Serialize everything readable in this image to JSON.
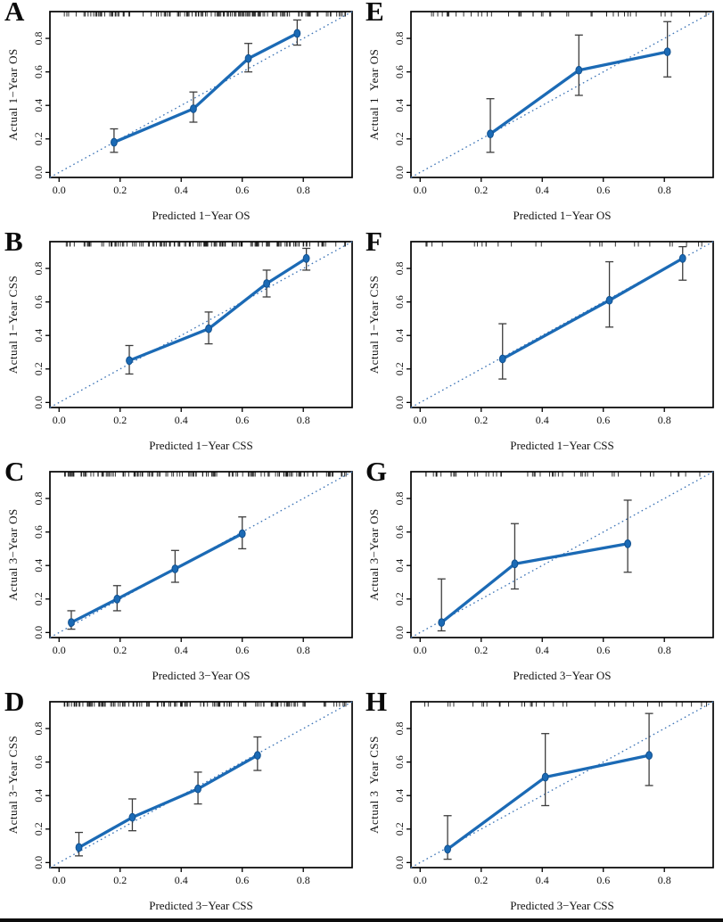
{
  "figure": {
    "description": "Calibration curves of nomograms, panels A-H",
    "colors": {
      "line": "#1b6ab5",
      "marker": "#1b6ab5",
      "marker_edge": "#11508e",
      "ideal": "#3a72b5",
      "error_bar": "#3d3d3d",
      "frame": "#000000",
      "background": "#ffffff",
      "bottom_bar": "#0d0d0d"
    },
    "tick_labels": [
      "0.0",
      "0.2",
      "0.4",
      "0.6",
      "0.8"
    ],
    "tick_values": [
      0,
      0.2,
      0.4,
      0.6,
      0.8
    ]
  },
  "chart_data": [
    {
      "type": "line",
      "panel": "A",
      "xlabel": "Predicted 1−Year OS",
      "ylabel": "Actual 1−Year OS",
      "xlim": [
        -0.03,
        0.96
      ],
      "ylim": [
        -0.03,
        0.96
      ],
      "x": [
        0.18,
        0.44,
        0.62,
        0.78
      ],
      "y": [
        0.18,
        0.38,
        0.68,
        0.83
      ],
      "err_low": [
        0.12,
        0.3,
        0.6,
        0.76
      ],
      "err_high": [
        0.26,
        0.48,
        0.77,
        0.91
      ],
      "ideal_line": "y = x dotted",
      "rug": {
        "seed": 11,
        "count": 150,
        "bias": 0.85
      }
    },
    {
      "type": "line",
      "panel": "B",
      "xlabel": "Predicted 1−Year CSS",
      "ylabel": "Actual 1−Year CSS",
      "xlim": [
        -0.03,
        0.96
      ],
      "ylim": [
        -0.03,
        0.96
      ],
      "x": [
        0.23,
        0.49,
        0.68,
        0.81
      ],
      "y": [
        0.25,
        0.44,
        0.71,
        0.86
      ],
      "err_low": [
        0.17,
        0.35,
        0.63,
        0.79
      ],
      "err_high": [
        0.34,
        0.54,
        0.79,
        0.92
      ],
      "ideal_line": "y = x dotted",
      "rug": {
        "seed": 22,
        "count": 150,
        "bias": 0.8
      }
    },
    {
      "type": "line",
      "panel": "C",
      "xlabel": "Predicted 3−Year OS",
      "ylabel": "Actual 3−Year OS",
      "xlim": [
        -0.03,
        0.96
      ],
      "ylim": [
        -0.03,
        0.96
      ],
      "x": [
        0.04,
        0.19,
        0.38,
        0.6
      ],
      "y": [
        0.06,
        0.2,
        0.38,
        0.59
      ],
      "err_low": [
        0.02,
        0.13,
        0.3,
        0.5
      ],
      "err_high": [
        0.13,
        0.28,
        0.49,
        0.69
      ],
      "ideal_line": "y = x dotted",
      "rug": {
        "seed": 33,
        "count": 140,
        "bias": 1.35
      }
    },
    {
      "type": "line",
      "panel": "D",
      "xlabel": "Predicted 3−Year CSS",
      "ylabel": "Actual 3−Year CSS",
      "xlim": [
        -0.03,
        0.96
      ],
      "ylim": [
        -0.03,
        0.96
      ],
      "x": [
        0.065,
        0.24,
        0.455,
        0.65
      ],
      "y": [
        0.09,
        0.27,
        0.44,
        0.64
      ],
      "err_low": [
        0.04,
        0.19,
        0.35,
        0.55
      ],
      "err_high": [
        0.18,
        0.38,
        0.54,
        0.75
      ],
      "ideal_line": "y = x dotted",
      "rug": {
        "seed": 44,
        "count": 140,
        "bias": 1.25
      }
    },
    {
      "type": "line",
      "panel": "E",
      "xlabel": "Predicted 1−Year OS",
      "ylabel": "Actual 1  Year OS",
      "xlim": [
        -0.03,
        0.96
      ],
      "ylim": [
        -0.03,
        0.96
      ],
      "x": [
        0.23,
        0.52,
        0.81
      ],
      "y": [
        0.23,
        0.61,
        0.72
      ],
      "err_low": [
        0.12,
        0.46,
        0.57
      ],
      "err_high": [
        0.44,
        0.82,
        0.9
      ],
      "ideal_line": "y = x dotted",
      "rug": {
        "seed": 55,
        "count": 42,
        "bias": 1.0
      }
    },
    {
      "type": "line",
      "panel": "F",
      "xlabel": "Predicted 1−Year CSS",
      "ylabel": "Actual 1−Year CSS",
      "xlim": [
        -0.03,
        0.96
      ],
      "ylim": [
        -0.03,
        0.96
      ],
      "x": [
        0.27,
        0.62,
        0.86
      ],
      "y": [
        0.26,
        0.61,
        0.86
      ],
      "err_low": [
        0.14,
        0.45,
        0.73
      ],
      "err_high": [
        0.47,
        0.84,
        0.93
      ],
      "ideal_line": "y = x dotted",
      "rug": {
        "seed": 66,
        "count": 26,
        "bias": 0.9
      }
    },
    {
      "type": "line",
      "panel": "G",
      "xlabel": "Predicted 3−Year OS",
      "ylabel": "Actual 3−Year OS",
      "xlim": [
        -0.03,
        0.96
      ],
      "ylim": [
        -0.03,
        0.96
      ],
      "x": [
        0.07,
        0.31,
        0.68
      ],
      "y": [
        0.06,
        0.41,
        0.53
      ],
      "err_low": [
        0.01,
        0.26,
        0.36
      ],
      "err_high": [
        0.32,
        0.65,
        0.79
      ],
      "ideal_line": "y = x dotted",
      "rug": {
        "seed": 77,
        "count": 50,
        "bias": 1.1
      }
    },
    {
      "type": "line",
      "panel": "H",
      "xlabel": "Predicted 3−Year CSS",
      "ylabel": "Actual 3  Year CSS",
      "xlim": [
        -0.03,
        0.96
      ],
      "ylim": [
        -0.03,
        0.96
      ],
      "x": [
        0.09,
        0.41,
        0.75
      ],
      "y": [
        0.08,
        0.51,
        0.64
      ],
      "err_low": [
        0.02,
        0.34,
        0.46
      ],
      "err_high": [
        0.28,
        0.77,
        0.89
      ],
      "ideal_line": "y = x dotted",
      "rug": {
        "seed": 88,
        "count": 36,
        "bias": 1.05
      }
    }
  ]
}
